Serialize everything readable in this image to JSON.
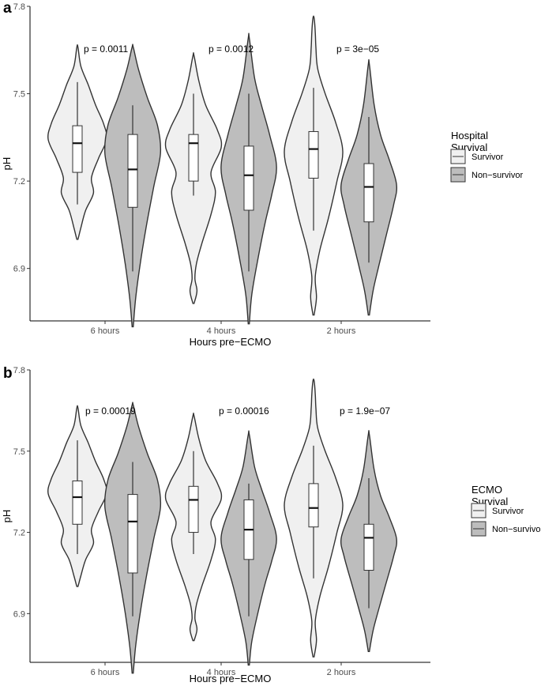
{
  "chart_data": [
    {
      "panel": "a",
      "type": "violin",
      "xlabel": "Hours pre−ECMO",
      "ylabel": "pH",
      "categories": [
        "6 hours",
        "4 hours",
        "2 hours"
      ],
      "ylim": [
        6.72,
        7.8
      ],
      "yticks": [
        "6.9",
        "7.2",
        "7.5",
        "7.8"
      ],
      "legend": {
        "title_lines": [
          "Hospital",
          "Survival"
        ],
        "position": "right"
      },
      "series": [
        {
          "name": "Survivor",
          "color": "#f0f0f0",
          "boxes": [
            {
              "min": 7.12,
              "q1": 7.23,
              "median": 7.33,
              "q3": 7.39,
              "max": 7.54,
              "vmin": 7.0,
              "vmax": 7.66
            },
            {
              "min": 7.15,
              "q1": 7.2,
              "median": 7.33,
              "q3": 7.36,
              "max": 7.5,
              "vmin": 6.78,
              "vmax": 7.63
            },
            {
              "min": 7.03,
              "q1": 7.21,
              "median": 7.31,
              "q3": 7.37,
              "max": 7.52,
              "vmin": 6.74,
              "vmax": 7.76
            }
          ]
        },
        {
          "name": "Non−survivor",
          "color": "#bdbdbd",
          "boxes": [
            {
              "min": 6.89,
              "q1": 7.11,
              "median": 7.24,
              "q3": 7.36,
              "max": 7.46,
              "vmin": 6.7,
              "vmax": 7.66
            },
            {
              "min": 6.89,
              "q1": 7.1,
              "median": 7.22,
              "q3": 7.32,
              "max": 7.5,
              "vmin": 6.71,
              "vmax": 7.69
            },
            {
              "min": 6.92,
              "q1": 7.06,
              "median": 7.18,
              "q3": 7.26,
              "max": 7.42,
              "vmin": 6.74,
              "vmax": 7.6
            }
          ]
        }
      ],
      "annotations": [
        "p = 0.0011",
        "p = 0.0012",
        "p = 3e−05"
      ]
    },
    {
      "panel": "b",
      "type": "violin",
      "xlabel": "Hours pre−ECMO",
      "ylabel": "pH",
      "categories": [
        "6 hours",
        "4 hours",
        "2 hours"
      ],
      "ylim": [
        6.72,
        7.8
      ],
      "yticks": [
        "6.9",
        "7.2",
        "7.5",
        "7.8"
      ],
      "legend": {
        "title_lines": [
          "ECMO",
          "Survival"
        ],
        "position": "right"
      },
      "series": [
        {
          "name": "Survivor",
          "color": "#f0f0f0",
          "boxes": [
            {
              "min": 7.12,
              "q1": 7.23,
              "median": 7.33,
              "q3": 7.39,
              "max": 7.54,
              "vmin": 7.0,
              "vmax": 7.66
            },
            {
              "min": 7.12,
              "q1": 7.2,
              "median": 7.32,
              "q3": 7.37,
              "max": 7.5,
              "vmin": 6.8,
              "vmax": 7.63
            },
            {
              "min": 7.03,
              "q1": 7.22,
              "median": 7.29,
              "q3": 7.38,
              "max": 7.52,
              "vmin": 6.74,
              "vmax": 7.76
            }
          ]
        },
        {
          "name": "Non−survivor",
          "color": "#bdbdbd",
          "boxes": [
            {
              "min": 6.89,
              "q1": 7.05,
              "median": 7.24,
              "q3": 7.34,
              "max": 7.46,
              "vmin": 6.68,
              "vmax": 7.67
            },
            {
              "min": 6.89,
              "q1": 7.1,
              "median": 7.21,
              "q3": 7.32,
              "max": 7.38,
              "vmin": 6.71,
              "vmax": 7.56
            },
            {
              "min": 6.92,
              "q1": 7.06,
              "median": 7.18,
              "q3": 7.23,
              "max": 7.4,
              "vmin": 6.76,
              "vmax": 7.56
            }
          ]
        }
      ],
      "annotations": [
        "p = 0.00019",
        "p = 0.00016",
        "p = 1.9e−07"
      ]
    }
  ]
}
